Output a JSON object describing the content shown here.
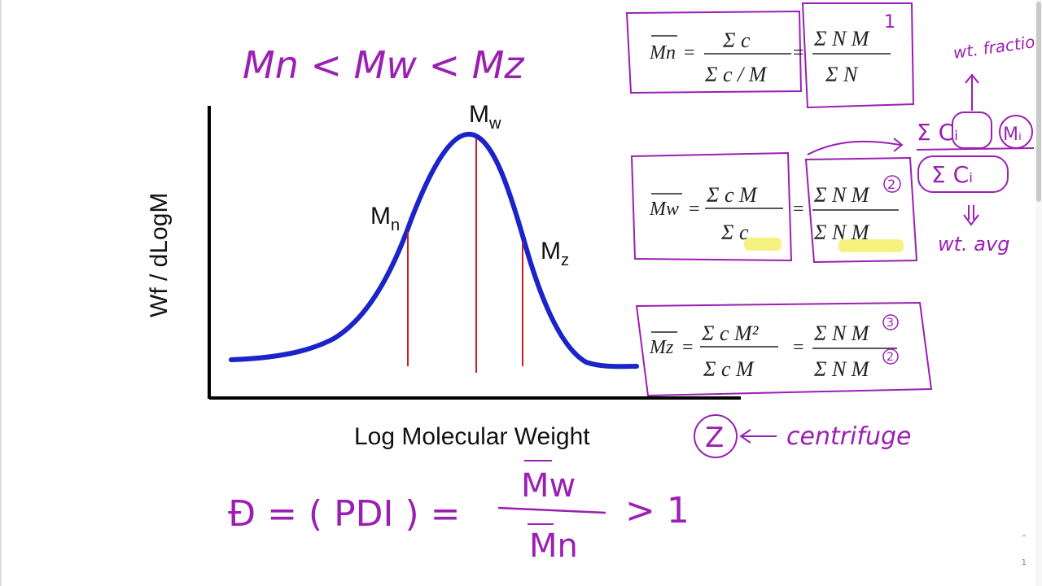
{
  "heading": {
    "text": "Mn < Mw < Mz"
  },
  "chart_data": {
    "type": "line",
    "xlabel": "Log Molecular Weight",
    "ylabel": "Wf / dLogM",
    "markers": [
      {
        "label": "M",
        "sub": "n"
      },
      {
        "label": "M",
        "sub": "w"
      },
      {
        "label": "M",
        "sub": "z"
      }
    ]
  },
  "equations": {
    "mn": {
      "lhs": "Mn",
      "eq": "=",
      "num1": "Σ c",
      "den1": "Σ c / M",
      "num2": "Σ N M",
      "den2": "Σ N",
      "exp": "1"
    },
    "mw": {
      "lhs": "Mw",
      "eq": "=",
      "num1": "Σ c M",
      "den1": "Σ c",
      "num2": "Σ N M",
      "den2": "Σ N M",
      "exp_num": "2"
    },
    "mz": {
      "lhs": "Mz",
      "eq": "=",
      "num1": "Σ c M²",
      "den1": "Σ c M",
      "num2": "Σ N M",
      "den2": "Σ N M",
      "exp_num": "3",
      "exp_den": "2"
    },
    "sub_i": "i"
  },
  "annotations": {
    "wt_fraction": "wt. fraction",
    "sum_ci": "Σ Cᵢ",
    "mi": "Mᵢ",
    "sum_ci_den": "Σ Cᵢ",
    "wt_avg": "wt. avg",
    "z": "Z",
    "centrifuge": "centrifuge"
  },
  "pdi": {
    "lhs": "Đ = ( PDI ) =",
    "num": "Mw",
    "den": "Mn",
    "rhs": "> 1"
  },
  "viewer": {
    "page_number": "1",
    "scroll_up_icon": "chevron-up-icon"
  },
  "colors": {
    "ink": "#9b1fb4",
    "curve": "#1a24c9",
    "marker_line": "#c81e1e",
    "highlight": "#f3f06a"
  }
}
